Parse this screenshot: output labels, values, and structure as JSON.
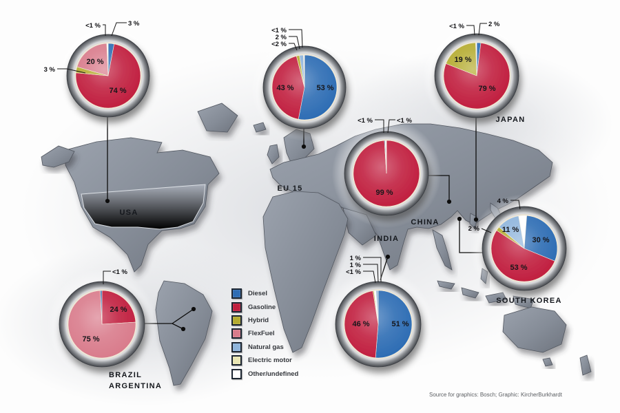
{
  "legend": {
    "items": [
      {
        "label": "Diesel",
        "color": "#2e6db4"
      },
      {
        "label": "Gasoline",
        "color": "#c12040"
      },
      {
        "label": "Hybrid",
        "color": "#b5ac31"
      },
      {
        "label": "FlexFuel",
        "color": "#d97c8c"
      },
      {
        "label": "Natural gas",
        "color": "#8fb5dc"
      },
      {
        "label": "Electric motor",
        "color": "#e9e6b4"
      },
      {
        "label": "Other/undefined",
        "color": "#ffffff"
      }
    ]
  },
  "region_labels": [
    {
      "text": "USA"
    },
    {
      "text": "EU 15"
    },
    {
      "text": "CHINA"
    },
    {
      "text": "INDIA"
    },
    {
      "text": "JAPAN"
    },
    {
      "text": "SOUTH KOREA"
    },
    {
      "text": "BRAZIL"
    },
    {
      "text": "ARGENTINA"
    }
  ],
  "source": "Source for graphics: Bosch; Graphic: KircherBurkhardt",
  "chart_data": [
    {
      "type": "pie",
      "region": "USA",
      "slices": [
        {
          "fuel": "Diesel",
          "label": "3 %",
          "value": 3
        },
        {
          "fuel": "Gasoline",
          "label": "74 %",
          "value": 74
        },
        {
          "fuel": "Hybrid",
          "label": "3 %",
          "value": 3
        },
        {
          "fuel": "FlexFuel",
          "label": "20 %",
          "value": 20
        },
        {
          "fuel": "Other/undefined",
          "label": "<1 %",
          "value": 0.7
        }
      ]
    },
    {
      "type": "pie",
      "region": "EU 15",
      "slices": [
        {
          "fuel": "Diesel",
          "label": "53 %",
          "value": 53
        },
        {
          "fuel": "Gasoline",
          "label": "43 %",
          "value": 43
        },
        {
          "fuel": "Hybrid",
          "label": "<2 %",
          "value": 1.5
        },
        {
          "fuel": "Natural gas",
          "label": "2 %",
          "value": 2
        },
        {
          "fuel": "Other/undefined",
          "label": "<1 %",
          "value": 0.5
        }
      ]
    },
    {
      "type": "pie",
      "region": "Japan",
      "slices": [
        {
          "fuel": "Diesel",
          "label": "2 %",
          "value": 2
        },
        {
          "fuel": "Gasoline",
          "label": "79 %",
          "value": 79
        },
        {
          "fuel": "Hybrid",
          "label": "19 %",
          "value": 18.5
        },
        {
          "fuel": "Other/undefined",
          "label": "<1 %",
          "value": 0.5
        }
      ]
    },
    {
      "type": "pie",
      "region": "China",
      "slices": [
        {
          "fuel": "Gasoline",
          "label": "99 %",
          "value": 99
        },
        {
          "fuel": "Diesel",
          "label": "<1 %",
          "value": 0.4
        },
        {
          "fuel": "Other/undefined",
          "label": "<1 %",
          "value": 0.6
        }
      ]
    },
    {
      "type": "pie",
      "region": "India",
      "slices": [
        {
          "fuel": "Diesel",
          "label": "51 %",
          "value": 51
        },
        {
          "fuel": "Gasoline",
          "label": "46 %",
          "value": 46
        },
        {
          "fuel": "Hybrid",
          "label": "<1 %",
          "value": 0.5
        },
        {
          "fuel": "Other/undefined",
          "label": "1 %",
          "value": 1
        },
        {
          "fuel": "Natural gas",
          "label": "1 %",
          "value": 1
        }
      ]
    },
    {
      "type": "pie",
      "region": "South Korea",
      "slices": [
        {
          "fuel": "Other/undefined",
          "label": "4 %",
          "value": 4
        },
        {
          "fuel": "Diesel",
          "label": "30 %",
          "value": 30
        },
        {
          "fuel": "Gasoline",
          "label": "53 %",
          "value": 53
        },
        {
          "fuel": "Hybrid",
          "label": "2 %",
          "value": 2
        },
        {
          "fuel": "Natural gas",
          "label": "11 %",
          "value": 11
        }
      ]
    },
    {
      "type": "pie",
      "region": "Brazil/Argentina",
      "slices": [
        {
          "fuel": "Gasoline",
          "label": "24 %",
          "value": 24
        },
        {
          "fuel": "FlexFuel",
          "label": "75 %",
          "value": 75
        },
        {
          "fuel": "Diesel",
          "label": "<1 %",
          "value": 0.8
        }
      ]
    }
  ]
}
